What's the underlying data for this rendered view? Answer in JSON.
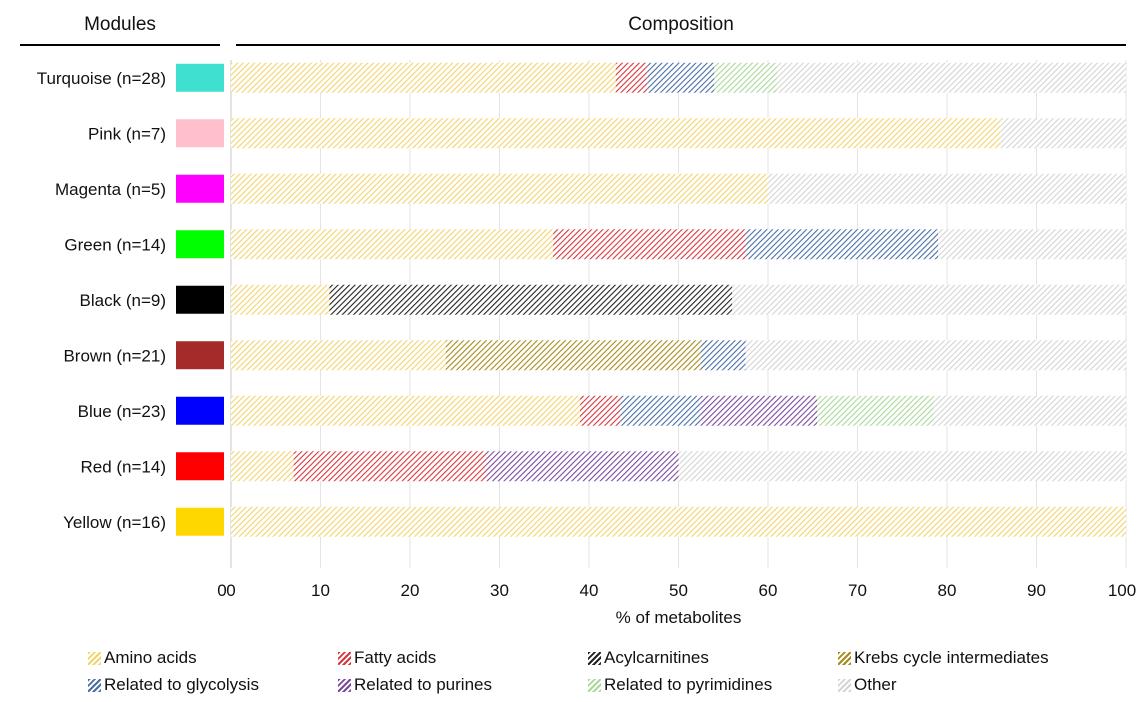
{
  "headers": {
    "modules": "Modules",
    "composition": "Composition"
  },
  "chart_data": {
    "type": "bar",
    "orientation": "horizontal",
    "stacked": true,
    "xlabel": "% of metabolites",
    "xlim": [
      0,
      100
    ],
    "xticks": [
      "0",
      "10",
      "20",
      "30",
      "40",
      "50",
      "60",
      "70",
      "80",
      "90",
      "100"
    ],
    "grid": "vertical",
    "legend_position": "bottom",
    "categories": [
      "Turquoise (n=28)",
      "Pink (n=7)",
      "Magenta (n=5)",
      "Green (n=14)",
      "Black (n=9)",
      "Brown (n=21)",
      "Blue (n=23)",
      "Red (n=14)",
      "Yellow (n=16)"
    ],
    "module_colors": [
      "#40E0D0",
      "#FFC0CB",
      "#FF00FF",
      "#00FF00",
      "#000000",
      "#A52A2A",
      "#0000FF",
      "#FF0000",
      "#FFD700"
    ],
    "series": [
      {
        "name": "Amino acids",
        "color": "#f3d36b",
        "values": [
          43,
          86,
          60,
          36,
          11,
          24,
          39,
          7,
          100
        ]
      },
      {
        "name": "Fatty acids",
        "color": "#d9363e",
        "values": [
          3.5,
          0,
          0,
          21.5,
          0,
          0,
          4.5,
          21.5,
          0
        ]
      },
      {
        "name": "Acylcarnitines",
        "color": "#222222",
        "values": [
          0,
          0,
          0,
          0,
          45,
          0,
          0,
          0,
          0
        ]
      },
      {
        "name": "Krebs cycle intermediates",
        "color": "#a68b1a",
        "values": [
          0,
          0,
          0,
          0,
          0,
          28.5,
          0,
          0,
          0
        ]
      },
      {
        "name": "Related to glycolysis",
        "color": "#4a6fa5",
        "values": [
          7.5,
          0,
          0,
          21.5,
          0,
          5,
          9,
          0,
          0
        ]
      },
      {
        "name": "Related to purines",
        "color": "#7b4a9e",
        "values": [
          0,
          0,
          0,
          0,
          0,
          0,
          13,
          21.5,
          0
        ]
      },
      {
        "name": "Related to pyrimidines",
        "color": "#a9d89a",
        "values": [
          7,
          0,
          0,
          0,
          0,
          0,
          13,
          0,
          0
        ]
      },
      {
        "name": "Other",
        "color": "#d4d4d4",
        "values": [
          39,
          14,
          40,
          21,
          44,
          42.5,
          21.5,
          50,
          0
        ]
      }
    ]
  }
}
